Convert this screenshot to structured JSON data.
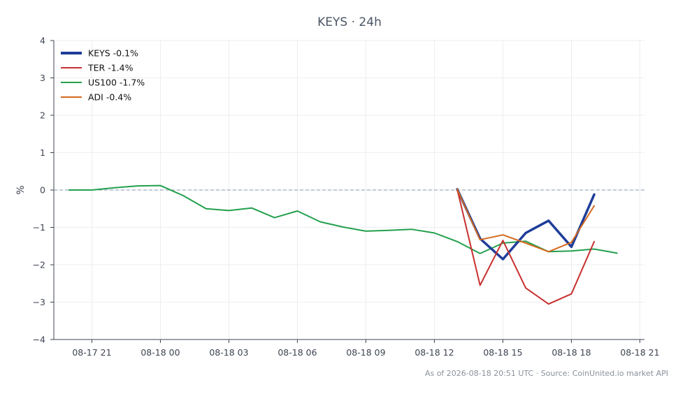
{
  "chart_data": {
    "type": "line",
    "title": "KEYS · 24h",
    "ylabel": "%",
    "xlabel": "",
    "ylim": [
      -4,
      4
    ],
    "xlim": [
      "08-17 19:20",
      "08-18 21:12"
    ],
    "yticks": [
      "4",
      "3",
      "2",
      "1",
      "0",
      "−1",
      "−2",
      "−3",
      "−4"
    ],
    "xticks": [
      "08-17 21",
      "08-18 00",
      "08-18 03",
      "08-18 06",
      "08-18 09",
      "08-18 12",
      "08-18 15",
      "08-18 18",
      "08-18 21"
    ],
    "grid": true,
    "baseline": 0,
    "legend_position": "top-left",
    "series": [
      {
        "name": "KEYS -0.1%",
        "color": "#1f3d99",
        "x": [
          "08-18 13:00",
          "08-18 14:00",
          "08-18 15:00",
          "08-18 16:00",
          "08-18 17:00",
          "08-18 18:00",
          "08-18 19:00"
        ],
        "y": [
          0.02,
          -1.3,
          -1.85,
          -1.15,
          -0.82,
          -1.52,
          -0.12
        ]
      },
      {
        "name": "TER -1.4%",
        "color": "#c8302f",
        "x": [
          "08-18 13:00",
          "08-18 14:00",
          "08-18 15:00",
          "08-18 16:00",
          "08-18 17:00",
          "08-18 18:00",
          "08-18 19:00"
        ],
        "y": [
          0.02,
          -2.55,
          -1.35,
          -2.62,
          -3.05,
          -2.78,
          -1.38
        ]
      },
      {
        "name": "US100 -1.7%",
        "color": "#23a04d",
        "x": [
          "08-17 20:00",
          "08-17 21:00",
          "08-17 22:00",
          "08-17 23:00",
          "08-18 00:00",
          "08-18 01:00",
          "08-18 02:00",
          "08-18 03:00",
          "08-18 04:00",
          "08-18 05:00",
          "08-18 06:00",
          "08-18 07:00",
          "08-18 08:00",
          "08-18 09:00",
          "08-18 10:00",
          "08-18 11:00",
          "08-18 12:00",
          "08-18 13:00",
          "08-18 14:00",
          "08-18 15:00",
          "08-18 16:00",
          "08-18 17:00",
          "08-18 18:00",
          "08-18 19:00",
          "08-18 20:00"
        ],
        "y": [
          0.0,
          0.0,
          0.06,
          0.11,
          0.12,
          -0.15,
          -0.5,
          -0.55,
          -0.48,
          -0.74,
          -0.56,
          -0.85,
          -0.99,
          -1.1,
          -1.08,
          -1.05,
          -1.15,
          -1.38,
          -1.7,
          -1.42,
          -1.37,
          -1.65,
          -1.63,
          -1.58,
          -1.69
        ]
      },
      {
        "name": "ADI -0.4%",
        "color": "#d4691f",
        "x": [
          "08-18 13:00",
          "08-18 14:00",
          "08-18 15:00",
          "08-18 16:00",
          "08-18 17:00",
          "08-18 18:00",
          "08-18 19:00"
        ],
        "y": [
          0.02,
          -1.33,
          -1.2,
          -1.42,
          -1.65,
          -1.4,
          -0.42
        ]
      }
    ]
  },
  "footer": "As of 2026-08-18 20:51 UTC · Source: CoinUnited.io market API"
}
